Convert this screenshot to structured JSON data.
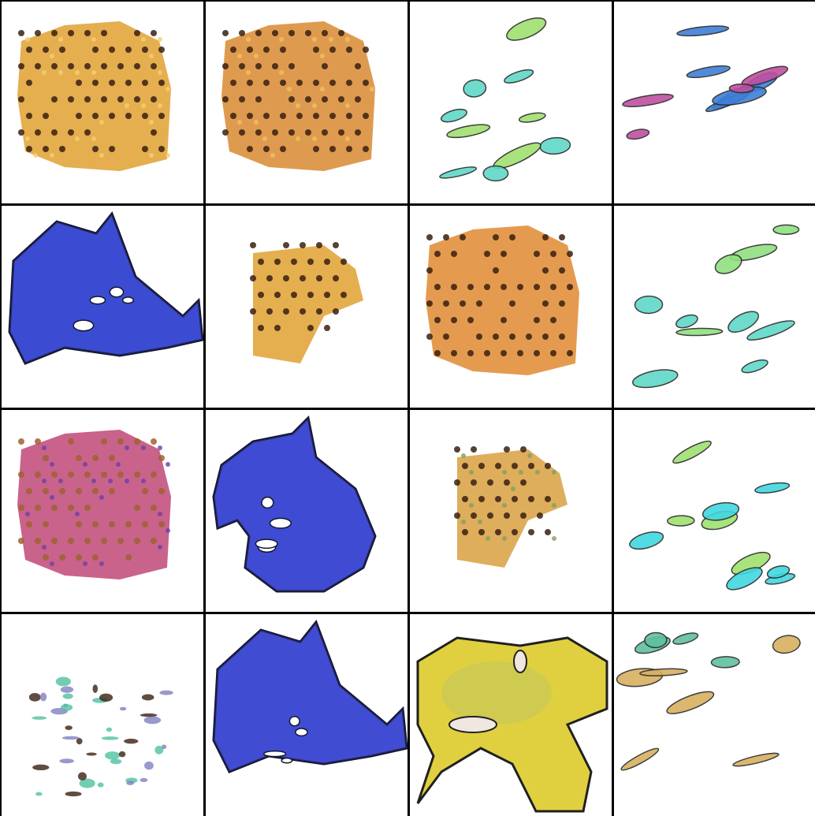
{
  "grid": {
    "rows": 4,
    "cols": 4,
    "background": "#000000",
    "tile_background": "#ffffff"
  },
  "tiles": [
    {
      "row": 0,
      "col": 0,
      "subject": "orange-checker-blob",
      "palette": [
        "#e0a030",
        "#3a2010",
        "#f5d070"
      ]
    },
    {
      "row": 0,
      "col": 1,
      "subject": "orange-checker-blob",
      "palette": [
        "#d88a30",
        "#3a2010",
        "#f0c060"
      ]
    },
    {
      "row": 0,
      "col": 2,
      "subject": "cyan-green-fragments",
      "palette": [
        "#5fd8c8",
        "#a0e070",
        "#3a3a3a"
      ]
    },
    {
      "row": 0,
      "col": 3,
      "subject": "blue-magenta-streaks",
      "palette": [
        "#3f7fd8",
        "#c050a0",
        "#60c0e0"
      ]
    },
    {
      "row": 1,
      "col": 0,
      "subject": "blue-blob",
      "palette": [
        "#2f4fd8",
        "#6040c0",
        "#101830"
      ]
    },
    {
      "row": 1,
      "col": 1,
      "subject": "small-orange-checker",
      "palette": [
        "#e0a030",
        "#3a2010"
      ]
    },
    {
      "row": 1,
      "col": 2,
      "subject": "orange-checker-blob",
      "palette": [
        "#e08a30",
        "#3a2010"
      ]
    },
    {
      "row": 1,
      "col": 3,
      "subject": "cyan-green-fragments",
      "palette": [
        "#5fd8c8",
        "#90e080",
        "#3a3a3a"
      ]
    },
    {
      "row": 2,
      "col": 0,
      "subject": "magenta-checker-blob",
      "palette": [
        "#c04878",
        "#a06030",
        "#7040a0"
      ]
    },
    {
      "row": 2,
      "col": 1,
      "subject": "blue-blob",
      "palette": [
        "#2f4fd8",
        "#7040c0",
        "#101830"
      ]
    },
    {
      "row": 2,
      "col": 2,
      "subject": "small-orange-checker",
      "palette": [
        "#d8a040",
        "#3a2010",
        "#80a060"
      ]
    },
    {
      "row": 2,
      "col": 3,
      "subject": "cyan-green-fragments",
      "palette": [
        "#40d8e0",
        "#a0e070",
        "#3a3a3a"
      ]
    },
    {
      "row": 3,
      "col": 0,
      "subject": "scattered-specks",
      "palette": [
        "#50c0a0",
        "#3a2010",
        "#8080c0"
      ]
    },
    {
      "row": 3,
      "col": 1,
      "subject": "blue-blob",
      "palette": [
        "#3050d8",
        "#7040c0",
        "#101830"
      ]
    },
    {
      "row": 3,
      "col": 2,
      "subject": "yellow-blob",
      "palette": [
        "#e0d040",
        "#b0c070",
        "#202020"
      ]
    },
    {
      "row": 3,
      "col": 3,
      "subject": "multicolor-fragments",
      "palette": [
        "#d8b060",
        "#60c0a0",
        "#e07080"
      ]
    }
  ]
}
